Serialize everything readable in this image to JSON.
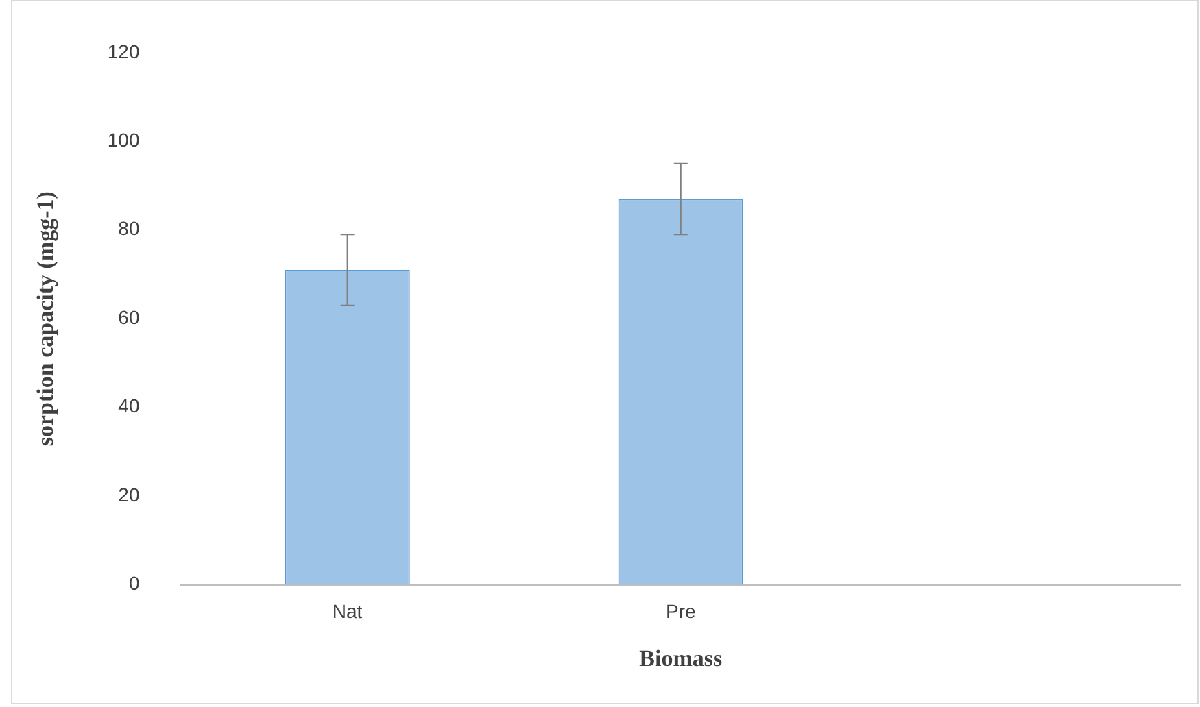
{
  "chart_data": {
    "type": "bar",
    "xlabel": "Biomass",
    "ylabel": "sorption capacity (mgg-1)",
    "categories": [
      "Nat",
      "Pre",
      null
    ],
    "values": [
      71,
      87,
      null
    ],
    "color": "#9dc3e6",
    "errors": [
      8,
      8,
      null
    ],
    "ylim": [
      0,
      120
    ],
    "yticks": [
      0,
      20,
      40,
      60,
      80,
      100,
      120
    ],
    "grid": false,
    "legend": false
  }
}
